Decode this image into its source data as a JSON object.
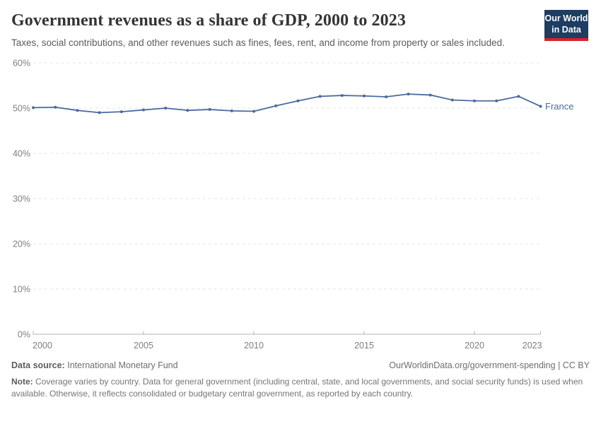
{
  "header": {
    "title": "Government revenues as a share of GDP, 2000 to 2023",
    "subtitle": "Taxes, social contributions, and other revenues such as fines, fees, rent, and income from property or sales included.",
    "logo": {
      "line1": "Our World",
      "line2": "in Data",
      "bg_color": "#1d3d63",
      "stripe_color": "#d8232a"
    }
  },
  "chart_data": {
    "type": "line",
    "title": "Government revenues as a share of GDP, 2000 to 2023",
    "xlabel": "",
    "ylabel": "",
    "xlim": [
      2000,
      2023
    ],
    "ylim": [
      0,
      60
    ],
    "grid": "horizontal-dashed",
    "legend_position": "end-of-line-label",
    "x_ticks": [
      2000,
      2005,
      2010,
      2015,
      2020,
      2023
    ],
    "y_ticks": [
      {
        "value": 0,
        "label": "0%"
      },
      {
        "value": 10,
        "label": "10%"
      },
      {
        "value": 20,
        "label": "20%"
      },
      {
        "value": 30,
        "label": "30%"
      },
      {
        "value": 40,
        "label": "40%"
      },
      {
        "value": 50,
        "label": "50%"
      },
      {
        "value": 60,
        "label": "60%"
      }
    ],
    "series": [
      {
        "name": "France",
        "color": "#4c6a9c",
        "x": [
          2000,
          2001,
          2002,
          2003,
          2004,
          2005,
          2006,
          2007,
          2008,
          2009,
          2010,
          2011,
          2012,
          2013,
          2014,
          2015,
          2016,
          2017,
          2018,
          2019,
          2020,
          2021,
          2022,
          2023
        ],
        "values": [
          50.1,
          50.2,
          49.5,
          49.0,
          49.2,
          49.6,
          50.0,
          49.5,
          49.7,
          49.4,
          49.3,
          50.5,
          51.6,
          52.6,
          52.8,
          52.7,
          52.5,
          53.1,
          52.9,
          51.8,
          51.6,
          51.6,
          52.6,
          50.4
        ]
      }
    ],
    "colors": {
      "grid": "#e2e2e2",
      "axis": "#b3b3b3",
      "tick_label": "#7f7f7f"
    }
  },
  "footer": {
    "source_label": "Data source:",
    "source_value": "International Monetary Fund",
    "link": "OurWorldinData.org/government-spending | CC BY",
    "note_label": "Note:",
    "note_text": "Coverage varies by country. Data for general government (including central, state, and local governments, and social security funds) is used when available. Otherwise, it reflects consolidated or budgetary central government, as reported by each country."
  }
}
